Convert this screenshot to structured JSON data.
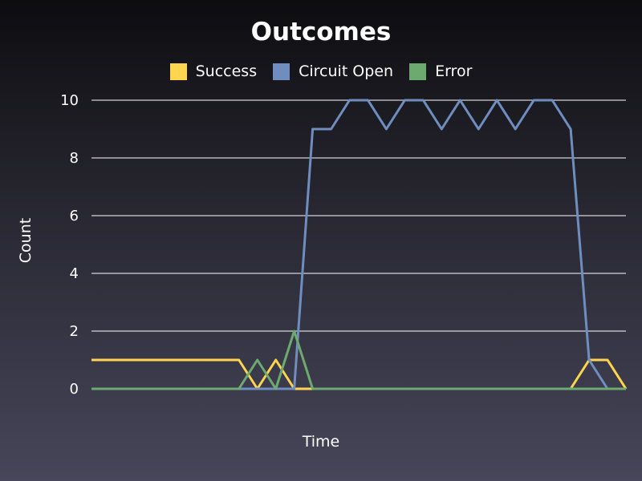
{
  "chart_data": {
    "type": "line",
    "title": "Outcomes",
    "xlabel": "Time",
    "ylabel": "Count",
    "ylim": [
      0,
      10
    ],
    "yticks": [
      "0",
      "2",
      "4",
      "6",
      "8",
      "10"
    ],
    "grid": "horizontal",
    "legend_position": "top",
    "x": [
      0,
      1,
      2,
      3,
      4,
      5,
      6,
      7,
      8,
      9,
      10,
      11,
      12,
      13,
      14,
      15,
      16,
      17,
      18,
      19,
      20,
      21,
      22,
      23,
      24,
      25,
      26,
      27,
      28,
      29
    ],
    "series": [
      {
        "name": "Success",
        "color": "#ffd54f",
        "values": [
          1,
          1,
          1,
          1,
          1,
          1,
          1,
          1,
          1,
          0,
          1,
          0,
          0,
          0,
          0,
          0,
          0,
          0,
          0,
          0,
          0,
          0,
          0,
          0,
          0,
          0,
          0,
          1,
          1,
          0
        ]
      },
      {
        "name": "Circuit Open",
        "color": "#6f8ebf",
        "values": [
          0,
          0,
          0,
          0,
          0,
          0,
          0,
          0,
          0,
          0,
          0,
          0,
          9,
          9,
          10,
          10,
          9,
          10,
          10,
          9,
          10,
          9,
          10,
          9,
          10,
          10,
          9,
          1,
          0,
          null
        ]
      },
      {
        "name": "Error",
        "color": "#6daa70",
        "values": [
          0,
          0,
          0,
          0,
          0,
          0,
          0,
          0,
          0,
          1,
          0,
          2,
          0,
          0,
          0,
          0,
          0,
          0,
          0,
          0,
          0,
          0,
          0,
          0,
          0,
          0,
          0,
          0,
          0,
          0
        ]
      }
    ]
  }
}
